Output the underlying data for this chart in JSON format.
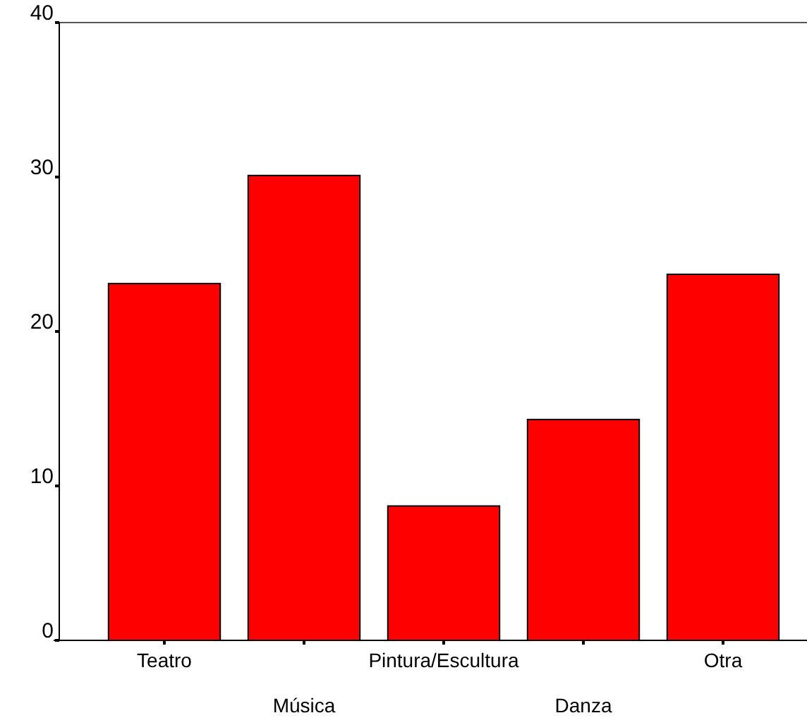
{
  "chart_data": {
    "type": "bar",
    "categories": [
      "Teatro",
      "Música",
      "Pintura/Escultura",
      "Danza",
      "Otra"
    ],
    "values": [
      23.1,
      30.1,
      8.7,
      14.3,
      23.7
    ],
    "color": "#ff0000",
    "ylim": [
      0,
      40
    ],
    "yticks": [
      0,
      10,
      20,
      30,
      40
    ],
    "grid": false
  }
}
